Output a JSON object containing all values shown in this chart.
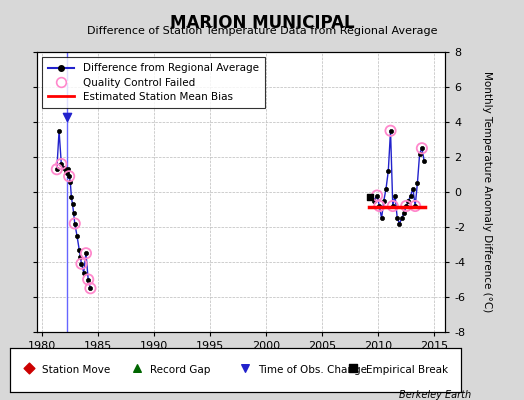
{
  "title": "MARION MUNICIPAL",
  "subtitle": "Difference of Station Temperature Data from Regional Average",
  "ylabel": "Monthly Temperature Anomaly Difference (°C)",
  "xlabel_years": [
    1980,
    1985,
    1990,
    1995,
    2000,
    2005,
    2010,
    2015
  ],
  "xlim": [
    1979.5,
    2016
  ],
  "ylim": [
    -8,
    8
  ],
  "yticks": [
    -8,
    -6,
    -4,
    -2,
    0,
    2,
    4,
    6,
    8
  ],
  "background_color": "#d8d8d8",
  "plot_bg_color": "#ffffff",
  "grid_color": "#bbbbbb",
  "series1_x": [
    1981.3,
    1981.5,
    1981.7,
    1981.9,
    1982.1,
    1982.2,
    1982.3,
    1982.4,
    1982.5,
    1982.6,
    1982.7,
    1982.8,
    1982.9,
    1983.1,
    1983.3,
    1983.4,
    1983.5,
    1983.7,
    1983.9,
    1984.1,
    1984.3
  ],
  "series1_y": [
    1.3,
    3.5,
    1.6,
    1.4,
    1.2,
    1.1,
    1.3,
    0.9,
    0.6,
    -0.3,
    -0.7,
    -1.2,
    -1.8,
    -2.5,
    -3.3,
    -3.7,
    -4.1,
    -4.6,
    -3.5,
    -5.0,
    -5.5
  ],
  "series2_x": [
    2009.3,
    2009.6,
    2009.9,
    2010.1,
    2010.3,
    2010.5,
    2010.7,
    2010.9,
    2011.1,
    2011.3,
    2011.5,
    2011.7,
    2011.9,
    2012.1,
    2012.3,
    2012.5,
    2012.7,
    2012.9,
    2013.1,
    2013.3,
    2013.5,
    2013.7,
    2013.9,
    2014.1
  ],
  "series2_y": [
    -0.3,
    -0.5,
    -0.2,
    -0.8,
    -1.5,
    -0.5,
    0.2,
    1.2,
    3.5,
    -0.8,
    -0.2,
    -1.5,
    -1.8,
    -1.5,
    -1.2,
    -0.8,
    -0.5,
    -0.2,
    0.2,
    -0.8,
    0.5,
    2.2,
    2.5,
    1.8
  ],
  "qc_failed_x": [
    1981.3,
    1981.7,
    1982.4,
    1982.9,
    1983.5,
    1983.9,
    1984.1,
    1984.3,
    2009.9,
    2010.1,
    2011.1,
    2011.3,
    2012.5,
    2013.3,
    2013.9
  ],
  "qc_failed_y": [
    1.3,
    1.6,
    0.9,
    -1.8,
    -4.1,
    -3.5,
    -5.0,
    -5.5,
    -0.2,
    -0.8,
    3.5,
    -0.8,
    -0.8,
    -0.8,
    2.5
  ],
  "bias_line_x1": 2009.2,
  "bias_line_x2": 2014.2,
  "bias_line_y": -0.85,
  "vertical_line_x": 1982.2,
  "vertical_line_y1": 4.3,
  "vertical_line_y2": -6.0,
  "line_color": "#2222cc",
  "marker_color": "#000000",
  "qc_color": "#ff88cc",
  "bias_color": "#ff0000",
  "vline_color": "#6666ff",
  "time_obs_x": 1982.2,
  "time_obs_y": 4.3,
  "empirical_break_x": 2009.3,
  "empirical_break_y": -0.3,
  "watermark": "Berkeley Earth",
  "legend_entries": [
    "Difference from Regional Average",
    "Quality Control Failed",
    "Estimated Station Mean Bias"
  ],
  "bottom_legend": [
    {
      "label": "Station Move",
      "marker": "D",
      "color": "#cc0000"
    },
    {
      "label": "Record Gap",
      "marker": "^",
      "color": "#006600"
    },
    {
      "label": "Time of Obs. Change",
      "marker": "v",
      "color": "#2222cc"
    },
    {
      "label": "Empirical Break",
      "marker": "s",
      "color": "#000000"
    }
  ]
}
